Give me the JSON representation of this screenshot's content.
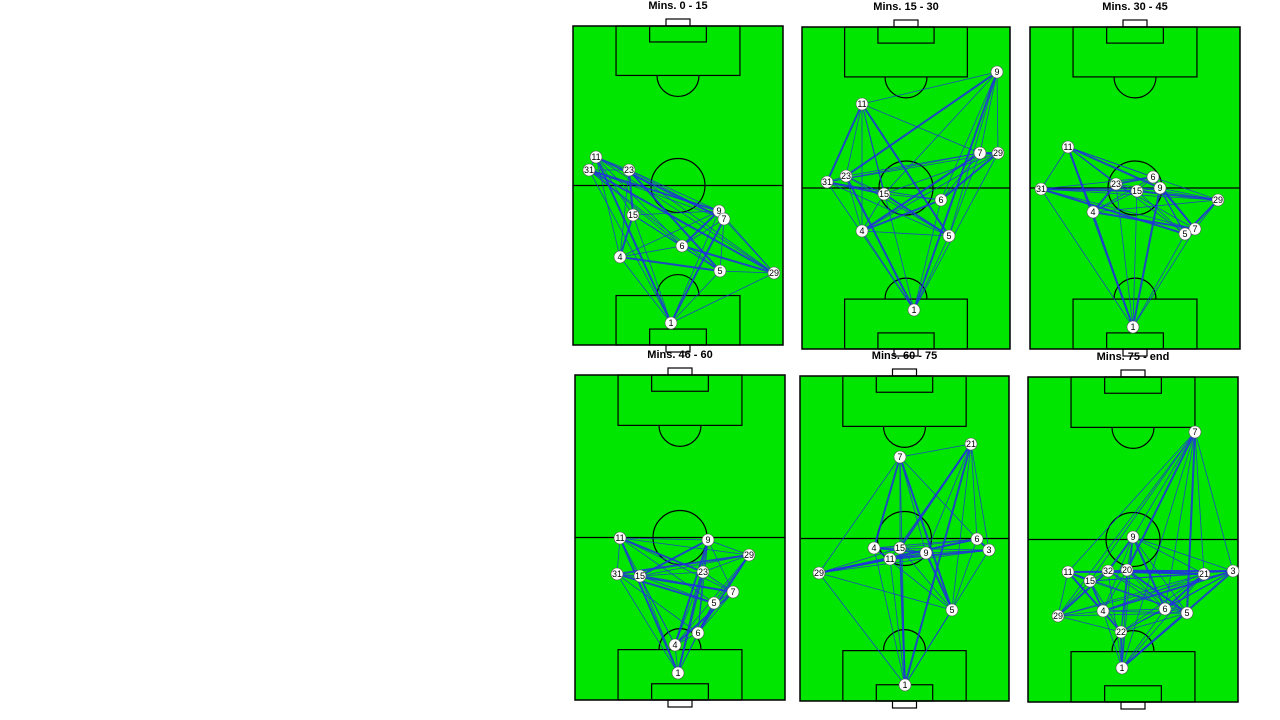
{
  "panels": [
    {
      "title": "Mins. 0 - 15",
      "nodes": [
        "11",
        "31",
        "23",
        "15",
        "9",
        "7",
        "6",
        "4",
        "5",
        "29",
        "1"
      ]
    },
    {
      "title": "Mins. 15 - 30",
      "nodes": [
        "9",
        "11",
        "7",
        "29",
        "31",
        "23",
        "15",
        "6",
        "4",
        "5",
        "1"
      ]
    },
    {
      "title": "Mins. 30 - 45",
      "nodes": [
        "11",
        "31",
        "6",
        "23",
        "15",
        "9",
        "29",
        "4",
        "7",
        "5",
        "1"
      ]
    },
    {
      "title": "Mins. 46 - 60",
      "nodes": [
        "11",
        "9",
        "29",
        "31",
        "15",
        "23",
        "7",
        "5",
        "6",
        "4",
        "1"
      ]
    },
    {
      "title": "Mins. 60 - 75",
      "nodes": [
        "21",
        "7",
        "6",
        "3",
        "4",
        "15",
        "9",
        "11",
        "29",
        "5",
        "1"
      ]
    },
    {
      "title": "Mins. 75 - end",
      "nodes": [
        "7",
        "9",
        "3",
        "11",
        "32",
        "20",
        "21",
        "15",
        "4",
        "6",
        "5",
        "29",
        "22",
        "1"
      ]
    }
  ]
}
